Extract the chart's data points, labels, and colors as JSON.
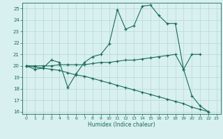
{
  "xlabel": "Humidex (Indice chaleur)",
  "x": [
    0,
    1,
    2,
    3,
    4,
    5,
    6,
    7,
    8,
    9,
    10,
    11,
    12,
    13,
    14,
    15,
    16,
    17,
    18,
    19,
    20,
    21,
    22,
    23
  ],
  "line1": [
    20.0,
    19.7,
    19.8,
    20.5,
    20.3,
    18.1,
    19.3,
    20.3,
    20.8,
    21.0,
    21.9,
    24.9,
    23.2,
    23.5,
    25.2,
    25.3,
    24.4,
    23.7,
    23.7,
    19.7,
    17.4,
    16.5,
    16.0,
    null
  ],
  "line2": [
    20.0,
    20.0,
    20.0,
    20.0,
    20.1,
    20.1,
    20.1,
    20.1,
    20.2,
    20.3,
    20.3,
    20.4,
    20.5,
    20.5,
    20.6,
    20.7,
    20.8,
    20.9,
    21.0,
    19.7,
    21.0,
    21.0,
    null,
    null
  ],
  "line3": [
    20.0,
    19.9,
    19.8,
    19.7,
    19.6,
    19.4,
    19.2,
    19.1,
    18.9,
    18.7,
    18.5,
    18.3,
    18.1,
    17.9,
    17.7,
    17.5,
    17.3,
    17.1,
    16.9,
    16.7,
    16.4,
    16.2,
    16.0,
    null
  ],
  "color": "#1a6b5a",
  "bg_color": "#d8f0ef",
  "grid_color": "#b8d8d5",
  "ylim": [
    15.8,
    25.5
  ],
  "yticks": [
    16,
    17,
    18,
    19,
    20,
    21,
    22,
    23,
    24,
    25
  ],
  "xlim": [
    -0.5,
    23.5
  ],
  "xticks": [
    0,
    1,
    2,
    3,
    4,
    5,
    6,
    7,
    8,
    9,
    10,
    11,
    12,
    13,
    14,
    15,
    16,
    17,
    18,
    19,
    20,
    21,
    22,
    23
  ]
}
